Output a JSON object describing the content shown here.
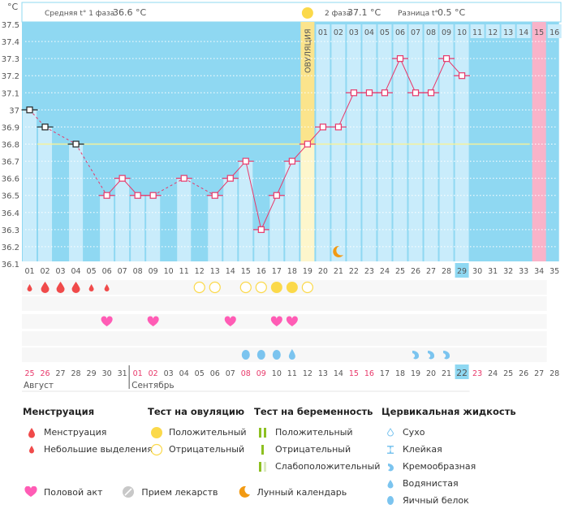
{
  "header": {
    "unit": "°C",
    "phase1_label": "Средняя t° 1 фаза",
    "phase1_value": "36.6 °C",
    "phase2_label": "2 фаза",
    "phase2_value": "37.1 °C",
    "diff_label": "Разница t°",
    "diff_value": "0.5 °C"
  },
  "colors": {
    "chart_bg": "#8fd8f2",
    "bar": "#c9ecfb",
    "line": "#e8386a",
    "ovulation": "#fbe48c",
    "expected_period": "#f9b3c9",
    "coverline": "#f5f29a",
    "menstruation": "#f04a4a",
    "ovulation_test": "#fbd94a",
    "heart": "#ff5cb5",
    "fluid": "#7bc4ef",
    "pregnancy": "#8dc021",
    "moon": "#f29a12",
    "red_date": "#e8386a"
  },
  "chart_data": {
    "type": "bar",
    "title": "",
    "ylabel": "°C",
    "ylim": [
      36.1,
      37.5
    ],
    "yticks": [
      "37.5",
      "37.4",
      "37.3",
      "37.2",
      "37.1",
      "37",
      "36.9",
      "36.8",
      "36.7",
      "36.6",
      "36.5",
      "36.4",
      "36.3",
      "36.2",
      "36.1"
    ],
    "cycle_days": [
      "01",
      "02",
      "03",
      "04",
      "05",
      "06",
      "07",
      "08",
      "09",
      "10",
      "11",
      "12",
      "13",
      "14",
      "15",
      "16",
      "17",
      "18",
      "19",
      "20",
      "21",
      "22",
      "23",
      "24",
      "25",
      "26",
      "27",
      "28",
      "29",
      "30",
      "31",
      "32",
      "33",
      "34",
      "35"
    ],
    "temperatures": [
      37.0,
      36.9,
      null,
      36.8,
      null,
      36.5,
      36.6,
      36.5,
      36.5,
      null,
      36.6,
      null,
      36.5,
      36.6,
      36.7,
      36.3,
      36.5,
      36.7,
      36.8,
      36.9,
      36.9,
      37.1,
      37.1,
      37.1,
      37.3,
      37.1,
      37.1,
      37.3,
      37.2,
      null,
      null,
      null,
      null,
      null,
      null
    ],
    "excluded_points": [
      1,
      2,
      4
    ],
    "coverline": 36.8,
    "ovulation_day": 19,
    "ovulation_label": "ОВУЛЯЦИЯ",
    "luteal_days": [
      "01",
      "02",
      "03",
      "04",
      "05",
      "06",
      "07",
      "08",
      "09",
      "10",
      "11",
      "12",
      "13",
      "14",
      "15",
      "16"
    ],
    "expected_period_day": 34,
    "current_day": 29,
    "moon_day": 21,
    "light_columns_until": 29
  },
  "calendar": {
    "dates": [
      "25",
      "26",
      "27",
      "28",
      "29",
      "30",
      "31",
      "01",
      "02",
      "03",
      "04",
      "05",
      "06",
      "07",
      "08",
      "09",
      "10",
      "11",
      "12",
      "13",
      "14",
      "15",
      "16",
      "17",
      "18",
      "19",
      "20",
      "21",
      "22",
      "23",
      "24",
      "25",
      "26",
      "27",
      "28"
    ],
    "red_dates": [
      0,
      1,
      7,
      8,
      14,
      15,
      21,
      22,
      29
    ],
    "today_index": 28,
    "month1": "Август",
    "month2": "Сентябрь"
  },
  "markers": {
    "menstruation": [
      [
        0,
        "small"
      ],
      [
        1,
        "big"
      ],
      [
        2,
        "big"
      ],
      [
        3,
        "big"
      ],
      [
        4,
        "small"
      ],
      [
        5,
        "small"
      ]
    ],
    "ovulation_test": [
      [
        11,
        "neg"
      ],
      [
        12,
        "neg"
      ],
      [
        14,
        "neg"
      ],
      [
        15,
        "neg"
      ],
      [
        16,
        "pos"
      ],
      [
        17,
        "pos"
      ],
      [
        18,
        "neg"
      ]
    ],
    "intercourse": [
      5,
      8,
      13,
      16,
      17
    ],
    "fluid": [
      [
        14,
        "egg"
      ],
      [
        15,
        "egg"
      ],
      [
        16,
        "egg"
      ],
      [
        17,
        "water"
      ],
      [
        25,
        "cream"
      ],
      [
        26,
        "cream"
      ],
      [
        27,
        "cream"
      ]
    ]
  },
  "legend": {
    "menstruation": {
      "title": "Менструация",
      "items": [
        "Менструация",
        "Небольшие выделения"
      ]
    },
    "ovulation_test": {
      "title": "Тест на овуляцию",
      "items": [
        "Положительный",
        "Отрицательный"
      ]
    },
    "pregnancy_test": {
      "title": "Тест на беременность",
      "items": [
        "Положительный",
        "Отрицательный",
        "Слабоположительный"
      ]
    },
    "cervical_fluid": {
      "title": "Цервикальная жидкость",
      "items": [
        "Сухо",
        "Клейкая",
        "Кремообразная",
        "Водянистая",
        "Яичный белок"
      ]
    },
    "bottom": [
      "Половой акт",
      "Прием лекарств",
      "Лунный календарь"
    ]
  }
}
